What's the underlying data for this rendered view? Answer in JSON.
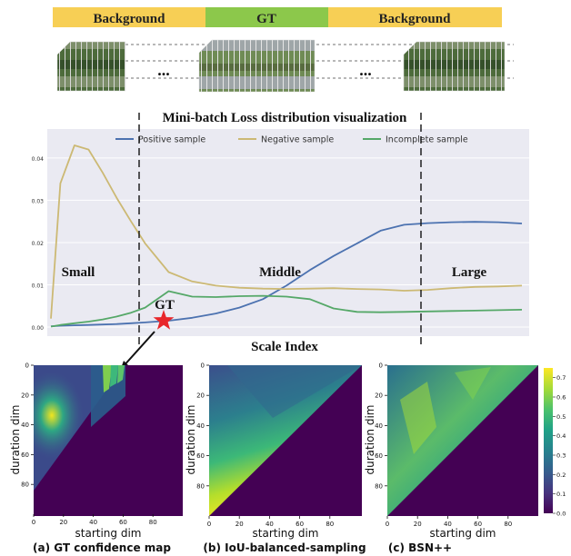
{
  "timeline": {
    "segments": [
      {
        "label": "Background",
        "color": "#f7cf55"
      },
      {
        "label": "GT",
        "color": "#8cc84b"
      },
      {
        "label": "Background",
        "color": "#f7cf55"
      }
    ],
    "ellipsis": "..."
  },
  "loss_chart": {
    "title": "Mini-batch Loss distribution visualization",
    "xlabel": "Scale Index",
    "regions": [
      "Small",
      "Middle",
      "Large"
    ],
    "gt_annotation": "GT",
    "colors": {
      "background": "#eaeaf2",
      "positive": "#4c72b0",
      "negative": "#ccb974",
      "incomplete": "#55a868",
      "star": "#e8262a"
    }
  },
  "chart_data": [
    {
      "type": "line",
      "title": "Mini-batch Loss distribution visualization",
      "xlabel": "Scale Index",
      "ylabel": "",
      "ylim": [
        0,
        0.046
      ],
      "yticks": [
        0.0,
        0.01,
        0.02,
        0.03,
        0.04
      ],
      "ytick_labels": [
        "0.00",
        "0.01",
        "0.02",
        "0.03",
        "0.04"
      ],
      "x": [
        0,
        2,
        5,
        8,
        11,
        14,
        17,
        20,
        25,
        30,
        35,
        40,
        45,
        50,
        55,
        60,
        65,
        70,
        75,
        80,
        85,
        90,
        95,
        100
      ],
      "series": [
        {
          "name": "Positive sample",
          "values": [
            0.0002,
            0.0003,
            0.0004,
            0.0005,
            0.0006,
            0.0007,
            0.0009,
            0.0011,
            0.0015,
            0.0022,
            0.0032,
            0.0046,
            0.0066,
            0.0098,
            0.0135,
            0.0168,
            0.0198,
            0.0228,
            0.0242,
            0.0246,
            0.0248,
            0.0249,
            0.0248,
            0.0245
          ]
        },
        {
          "name": "Negative sample",
          "values": [
            0.002,
            0.034,
            0.043,
            0.042,
            0.0365,
            0.0305,
            0.025,
            0.0198,
            0.013,
            0.0108,
            0.0098,
            0.0093,
            0.0091,
            0.009,
            0.0091,
            0.0092,
            0.009,
            0.0089,
            0.0086,
            0.0088,
            0.0092,
            0.0095,
            0.0096,
            0.0098
          ]
        },
        {
          "name": "Incomplete sample",
          "values": [
            0.0001,
            0.0005,
            0.0009,
            0.0013,
            0.0018,
            0.0025,
            0.0034,
            0.0046,
            0.0085,
            0.0072,
            0.0071,
            0.0073,
            0.0074,
            0.0072,
            0.0066,
            0.0044,
            0.0036,
            0.0035,
            0.0036,
            0.0037,
            0.0038,
            0.0039,
            0.004,
            0.0041
          ]
        }
      ],
      "legend": "top",
      "grid": true
    },
    {
      "type": "heatmap",
      "title": "(a) GT confidence map",
      "xlabel": "starting dim",
      "ylabel": "duration dim",
      "xticks": [
        "0",
        "20",
        "40",
        "60",
        "80"
      ],
      "yticks": [
        "0",
        "20",
        "40",
        "60",
        "80"
      ],
      "colormap": "viridis"
    },
    {
      "type": "heatmap",
      "title": "(b) IoU-balanced-sampling",
      "xlabel": "starting dim",
      "ylabel": "duration dim",
      "xticks": [
        "0",
        "20",
        "40",
        "60",
        "80"
      ],
      "yticks": [
        "0",
        "20",
        "40",
        "60",
        "80"
      ],
      "colormap": "viridis"
    },
    {
      "type": "heatmap",
      "title": "(c) BSN++",
      "xlabel": "starting dim",
      "ylabel": "duration dim",
      "xticks": [
        "0",
        "20",
        "40",
        "60",
        "80"
      ],
      "yticks": [
        "0",
        "20",
        "40",
        "60",
        "80"
      ],
      "colormap": "viridis",
      "colorbar_ticks": [
        "0.0",
        "0.1",
        "0.2",
        "0.3",
        "0.4",
        "0.5",
        "0.6",
        "0.7"
      ]
    }
  ]
}
